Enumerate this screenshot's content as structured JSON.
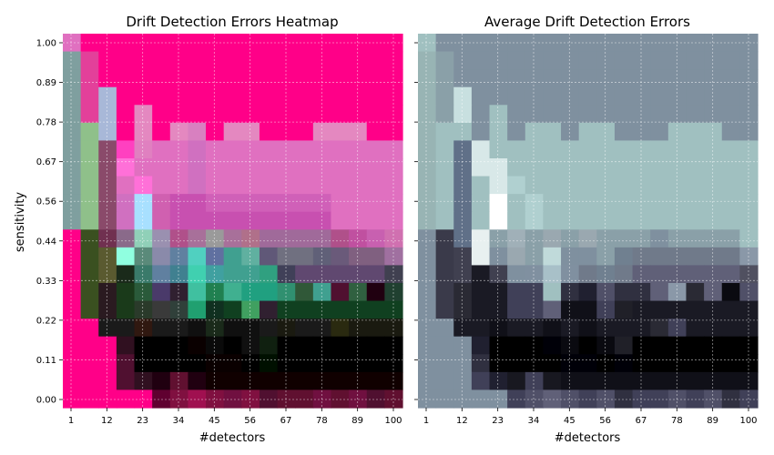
{
  "chart_data": [
    {
      "type": "heatmap",
      "title": "Drift Detection Errors Heatmap",
      "xlabel": "#detectors",
      "ylabel": "sensitivity",
      "xticks": [
        "1",
        "12",
        "23",
        "34",
        "45",
        "56",
        "67",
        "78",
        "89",
        "100"
      ],
      "yticks": [
        "1.00",
        "0.89",
        "0.78",
        "0.67",
        "0.56",
        "0.44",
        "0.33",
        "0.22",
        "0.11",
        "0.00"
      ],
      "grid": true,
      "rows_top_to_bottom": [
        [
          "#e070c0",
          "#ff0088",
          "#ff0088",
          "#ff0088",
          "#ff0088",
          "#ff0088",
          "#ff0088",
          "#ff0088",
          "#ff0088",
          "#ff0088",
          "#ff0088",
          "#ff0088",
          "#ff0088",
          "#ff0088",
          "#ff0088",
          "#ff0088",
          "#ff0088",
          "#ff0088",
          "#ff0088"
        ],
        [
          "#7f9f9f",
          "#e3409a",
          "#ff0088",
          "#ff0088",
          "#ff0088",
          "#ff0088",
          "#ff0088",
          "#ff0088",
          "#ff0088",
          "#ff0088",
          "#ff0088",
          "#ff0088",
          "#ff0088",
          "#ff0088",
          "#ff0088",
          "#ff0088",
          "#ff0088",
          "#ff0088",
          "#ff0088"
        ],
        [
          "#7f9f9f",
          "#e3409a",
          "#ff0088",
          "#ff0088",
          "#ff0088",
          "#ff0088",
          "#ff0088",
          "#ff0088",
          "#ff0088",
          "#ff0088",
          "#ff0088",
          "#ff0088",
          "#ff0088",
          "#ff0088",
          "#ff0088",
          "#ff0088",
          "#ff0088",
          "#ff0088",
          "#ff0088"
        ],
        [
          "#7f9f9f",
          "#e3409a",
          "#a8b8d8",
          "#ff0088",
          "#ff0088",
          "#ff0088",
          "#ff0088",
          "#ff0088",
          "#ff0088",
          "#ff0088",
          "#ff0088",
          "#ff0088",
          "#ff0088",
          "#ff0088",
          "#ff0088",
          "#ff0088",
          "#ff0088",
          "#ff0088",
          "#ff0088"
        ],
        [
          "#7f9f9f",
          "#e3409a",
          "#a8b8d8",
          "#ff0088",
          "#e488c0",
          "#ff0088",
          "#ff0088",
          "#ff0088",
          "#ff0088",
          "#ff0088",
          "#ff0088",
          "#ff0088",
          "#ff0088",
          "#ff0088",
          "#ff0088",
          "#ff0088",
          "#ff0088",
          "#ff0088",
          "#ff0088"
        ],
        [
          "#7f9f9f",
          "#8fc08a",
          "#a8b8d8",
          "#ff0088",
          "#e488c0",
          "#ff0088",
          "#e488c0",
          "#d880c0",
          "#ff0088",
          "#e488c0",
          "#e488c0",
          "#ff0088",
          "#ff0088",
          "#ff0088",
          "#e488c0",
          "#e488c0",
          "#e488c0",
          "#ff0088",
          "#ff0088"
        ],
        [
          "#7f9f9f",
          "#8fc08a",
          "#8a4a6a",
          "#ff40c0",
          "#e080c0",
          "#e070c0",
          "#e070c0",
          "#d070c0",
          "#e070c0",
          "#e070c0",
          "#e070c0",
          "#e070c0",
          "#e070c0",
          "#e070c0",
          "#e070c0",
          "#e070c0",
          "#e070c0",
          "#e070c0",
          "#e070c0"
        ],
        [
          "#7f9f9f",
          "#8fc08a",
          "#8a4a6a",
          "#ff70d8",
          "#e070c0",
          "#e070c0",
          "#e070c0",
          "#d070c0",
          "#e070c0",
          "#e070c0",
          "#e070c0",
          "#e070c0",
          "#e070c0",
          "#e070c0",
          "#e070c0",
          "#e070c0",
          "#e070c0",
          "#e070c0",
          "#e070c0"
        ],
        [
          "#7f9f9f",
          "#8fc08a",
          "#8a4a6a",
          "#e070c0",
          "#ff70d8",
          "#e070c0",
          "#e070c0",
          "#d070c0",
          "#e070c0",
          "#e070c0",
          "#e070c0",
          "#e070c0",
          "#e070c0",
          "#e070c0",
          "#e070c0",
          "#e070c0",
          "#e070c0",
          "#e070c0",
          "#e070c0"
        ],
        [
          "#7f9f9f",
          "#8fc08a",
          "#8a4a6a",
          "#d070c0",
          "#a8e0ff",
          "#d060b0",
          "#c850b0",
          "#c850b0",
          "#d060b8",
          "#d060b8",
          "#d060b8",
          "#d060b8",
          "#d060b8",
          "#d060b8",
          "#d060b8",
          "#e070c0",
          "#e070c0",
          "#e070c0",
          "#e070c0"
        ],
        [
          "#7f9f9f",
          "#8fc08a",
          "#8a4a6a",
          "#d070c0",
          "#a8e0ff",
          "#d060b0",
          "#c850b0",
          "#c850b0",
          "#c850b0",
          "#c850b0",
          "#c850b0",
          "#c850b0",
          "#c850b0",
          "#c850b0",
          "#c850b0",
          "#e070c0",
          "#e070c0",
          "#e070c0",
          "#e070c0"
        ],
        [
          "#ff0088",
          "#3a5020",
          "#703050",
          "#8a6a8a",
          "#90d0b8",
          "#9a90b0",
          "#b0508a",
          "#a8709a",
          "#9a9a9a",
          "#a8709a",
          "#b0708a",
          "#a06a9a",
          "#a06a9a",
          "#a06a9a",
          "#a06a9a",
          "#b0508a",
          "#c050a0",
          "#c860b0",
          "#d070b0"
        ],
        [
          "#ff0088",
          "#3a5020",
          "#5a5a30",
          "#90ffe0",
          "#5a8a7a",
          "#8a8aaa",
          "#6080a0",
          "#50d0c0",
          "#6070a0",
          "#40a090",
          "#60b0a0",
          "#605878",
          "#707080",
          "#707080",
          "#606078",
          "#6a5a7a",
          "#806080",
          "#806080",
          "#a070a0"
        ],
        [
          "#ff0088",
          "#3a5020",
          "#5a5a30",
          "#1a2a1a",
          "#3a7a6a",
          "#6080a0",
          "#408090",
          "#40d0b0",
          "#40a0a0",
          "#40a090",
          "#40a090",
          "#30a080",
          "#404058",
          "#604870",
          "#604870",
          "#604870",
          "#604870",
          "#604870",
          "#404050"
        ],
        [
          "#ff0088",
          "#3a5020",
          "#2a1a20",
          "#1a3a1a",
          "#2a5a3a",
          "#4a3a6a",
          "#302030",
          "#40c0a0",
          "#208050",
          "#40b090",
          "#20a080",
          "#20a080",
          "#309070",
          "#305838",
          "#40a090",
          "#501030",
          "#306040",
          "#200010",
          "#204030"
        ],
        [
          "#ff0088",
          "#3a5020",
          "#2a1a20",
          "#1a3a1a",
          "#2a3a2a",
          "#3a3a3a",
          "#30403a",
          "#20a070",
          "#103020",
          "#104020",
          "#40a060",
          "#302030",
          "#104020",
          "#104020",
          "#104020",
          "#104020",
          "#104020",
          "#104020",
          "#104020"
        ],
        [
          "#ff0088",
          "#ff0088",
          "#1a1a1a",
          "#1a1a1a",
          "#301810",
          "#1a1a1a",
          "#1a1a1a",
          "#101010",
          "#1a2a1a",
          "#101010",
          "#101010",
          "#1a1a1a",
          "#1a1a10",
          "#1a1a1a",
          "#1a1a1a",
          "#2a2a10",
          "#1a1a10",
          "#1a1a10",
          "#1a1a10"
        ],
        [
          "#ff0088",
          "#ff0088",
          "#ff0088",
          "#301020",
          "#000000",
          "#000000",
          "#000000",
          "#0a0000",
          "#0a0a0a",
          "#000000",
          "#101010",
          "#102010",
          "#000000",
          "#000000",
          "#000000",
          "#000000",
          "#000000",
          "#000000",
          "#000000"
        ],
        [
          "#ff0088",
          "#ff0088",
          "#ff0088",
          "#501030",
          "#000000",
          "#000000",
          "#000000",
          "#000000",
          "#0a0000",
          "#0a0000",
          "#000000",
          "#001000",
          "#000000",
          "#000000",
          "#000000",
          "#000000",
          "#000000",
          "#000000",
          "#000000"
        ],
        [
          "#ff0088",
          "#ff0088",
          "#ff0088",
          "#501030",
          "#301020",
          "#200010",
          "#601030",
          "#200010",
          "#100000",
          "#100000",
          "#100000",
          "#100000",
          "#100000",
          "#100000",
          "#100000",
          "#100000",
          "#100000",
          "#100000",
          "#100000"
        ],
        [
          "#ff0088",
          "#ff0088",
          "#ff0088",
          "#ff0088",
          "#ff0088",
          "#600030",
          "#801040",
          "#a01050",
          "#801040",
          "#701040",
          "#801040",
          "#501030",
          "#601030",
          "#601030",
          "#701040",
          "#601030",
          "#701040",
          "#501030",
          "#601030"
        ]
      ]
    },
    {
      "type": "heatmap",
      "title": "Average Drift Detection Errors",
      "xlabel": "#detectors",
      "ylabel": "",
      "xticks": [
        "1",
        "12",
        "23",
        "34",
        "45",
        "56",
        "67",
        "78",
        "89",
        "100"
      ],
      "yticks": [
        "",
        "",
        "",
        "",
        "",
        "",
        "",
        "",
        "",
        ""
      ],
      "grid": true,
      "rows_top_to_bottom": [
        [
          "#a0c0c0",
          "#7f909f",
          "#7f909f",
          "#7f909f",
          "#7f909f",
          "#7f909f",
          "#7f909f",
          "#7f909f",
          "#7f909f",
          "#7f909f",
          "#7f909f",
          "#7f909f",
          "#7f909f",
          "#7f909f",
          "#7f909f",
          "#7f909f",
          "#7f909f",
          "#7f909f",
          "#7f909f"
        ],
        [
          "#98b4b4",
          "#8aa0a8",
          "#7f909f",
          "#7f909f",
          "#7f909f",
          "#7f909f",
          "#7f909f",
          "#7f909f",
          "#7f909f",
          "#7f909f",
          "#7f909f",
          "#7f909f",
          "#7f909f",
          "#7f909f",
          "#7f909f",
          "#7f909f",
          "#7f909f",
          "#7f909f",
          "#7f909f"
        ],
        [
          "#98b4b4",
          "#8aa0a8",
          "#7f909f",
          "#7f909f",
          "#7f909f",
          "#7f909f",
          "#7f909f",
          "#7f909f",
          "#7f909f",
          "#7f909f",
          "#7f909f",
          "#7f909f",
          "#7f909f",
          "#7f909f",
          "#7f909f",
          "#7f909f",
          "#7f909f",
          "#7f909f",
          "#7f909f"
        ],
        [
          "#98b4b4",
          "#8aa0a8",
          "#c8e0e0",
          "#7f909f",
          "#7f909f",
          "#7f909f",
          "#7f909f",
          "#7f909f",
          "#7f909f",
          "#7f909f",
          "#7f909f",
          "#7f909f",
          "#7f909f",
          "#7f909f",
          "#7f909f",
          "#7f909f",
          "#7f909f",
          "#7f909f",
          "#7f909f"
        ],
        [
          "#98b4b4",
          "#8aa0a8",
          "#c8e0e0",
          "#7f909f",
          "#a0c0c0",
          "#7f909f",
          "#7f909f",
          "#7f909f",
          "#7f909f",
          "#7f909f",
          "#7f909f",
          "#7f909f",
          "#7f909f",
          "#7f909f",
          "#7f909f",
          "#7f909f",
          "#7f909f",
          "#7f909f",
          "#7f909f"
        ],
        [
          "#98b4b4",
          "#a0c0c0",
          "#a0c0c0",
          "#7f909f",
          "#a0c0c0",
          "#7f909f",
          "#a0c0c0",
          "#a0c0c0",
          "#7f909f",
          "#a0c0c0",
          "#a0c0c0",
          "#7f909f",
          "#7f909f",
          "#7f909f",
          "#a0c0c0",
          "#a0c0c0",
          "#a0c0c0",
          "#7f909f",
          "#7f909f"
        ],
        [
          "#98b4b4",
          "#a0c0c0",
          "#607088",
          "#d8e8e8",
          "#a0c0c0",
          "#a0c0c0",
          "#a0c0c0",
          "#a0c0c0",
          "#a0c0c0",
          "#a0c0c0",
          "#a0c0c0",
          "#a0c0c0",
          "#a0c0c0",
          "#a0c0c0",
          "#a0c0c0",
          "#a0c0c0",
          "#a0c0c0",
          "#a0c0c0",
          "#a0c0c0"
        ],
        [
          "#98b4b4",
          "#a0c0c0",
          "#607088",
          "#d8e8e8",
          "#d8e8e8",
          "#a0c0c0",
          "#a0c0c0",
          "#a0c0c0",
          "#a0c0c0",
          "#a0c0c0",
          "#a0c0c0",
          "#a0c0c0",
          "#a0c0c0",
          "#a0c0c0",
          "#a0c0c0",
          "#a0c0c0",
          "#a0c0c0",
          "#a0c0c0",
          "#a0c0c0"
        ],
        [
          "#98b4b4",
          "#a0c0c0",
          "#607088",
          "#a0c0c0",
          "#d8e8e8",
          "#b0d0d0",
          "#a0c0c0",
          "#a0c0c0",
          "#a0c0c0",
          "#a0c0c0",
          "#a0c0c0",
          "#a0c0c0",
          "#a0c0c0",
          "#a0c0c0",
          "#a0c0c0",
          "#a0c0c0",
          "#a0c0c0",
          "#a0c0c0",
          "#a0c0c0"
        ],
        [
          "#98b4b4",
          "#a0c0c0",
          "#607088",
          "#a0c0c0",
          "#ffffff",
          "#a0c0c0",
          "#b0d0d0",
          "#a0c0c0",
          "#a0c0c0",
          "#a0c0c0",
          "#a0c0c0",
          "#a0c0c0",
          "#a0c0c0",
          "#a0c0c0",
          "#a0c0c0",
          "#a0c0c0",
          "#a0c0c0",
          "#a0c0c0",
          "#a0c0c0"
        ],
        [
          "#98b4b4",
          "#a0c0c0",
          "#607088",
          "#a0c0c0",
          "#ffffff",
          "#a0c0c0",
          "#b0d0d0",
          "#a0c0c0",
          "#a0c0c0",
          "#a0c0c0",
          "#a0c0c0",
          "#a0c0c0",
          "#a0c0c0",
          "#a0c0c0",
          "#a0c0c0",
          "#a0c0c0",
          "#a0c0c0",
          "#a0c0c0",
          "#a0c0c0"
        ],
        [
          "#7f909f",
          "#3a3a4a",
          "#607088",
          "#e8f0f0",
          "#8aa0a8",
          "#a0b0b8",
          "#8aa0a8",
          "#9aa8b0",
          "#8aa0a8",
          "#9aa8b0",
          "#8aa0a8",
          "#8aa0a8",
          "#8aa0a8",
          "#7f909f",
          "#8aa0a8",
          "#8aa0a8",
          "#8aa0a8",
          "#8aa0a8",
          "#a0c0c0"
        ],
        [
          "#7f909f",
          "#3a3a4a",
          "#404050",
          "#e8f0f0",
          "#7f909f",
          "#9aa8b0",
          "#8aa0a8",
          "#c0dada",
          "#7f909f",
          "#7f909f",
          "#8aa0a8",
          "#708090",
          "#707a8a",
          "#707a8a",
          "#707a8a",
          "#707a8a",
          "#707a8a",
          "#707a8a",
          "#8a98a8"
        ],
        [
          "#7f909f",
          "#3a3a4a",
          "#404050",
          "#1a1a24",
          "#404050",
          "#7f909f",
          "#8090a0",
          "#a8c0c8",
          "#8090a0",
          "#707a8a",
          "#708090",
          "#707a8a",
          "#606078",
          "#606078",
          "#606078",
          "#606078",
          "#606078",
          "#606078",
          "#505060"
        ],
        [
          "#7f909f",
          "#3a3a4a",
          "#2a2a34",
          "#1a1a24",
          "#1a1a24",
          "#404058",
          "#404058",
          "#a0c0c0",
          "#303040",
          "#202030",
          "#505068",
          "#303040",
          "#303040",
          "#606078",
          "#8a98a8",
          "#2a2a34",
          "#606078",
          "#0a0a10",
          "#505068"
        ],
        [
          "#7f909f",
          "#3a3a4a",
          "#2a2a34",
          "#1a1a24",
          "#1a1a24",
          "#404058",
          "#404058",
          "#606078",
          "#101018",
          "#101018",
          "#404058",
          "#202028",
          "#1a1a24",
          "#1a1a24",
          "#1a1a24",
          "#1a1a24",
          "#1a1a24",
          "#1a1a24",
          "#1a1a24"
        ],
        [
          "#7f909f",
          "#7f909f",
          "#1a1a24",
          "#1a1a24",
          "#101018",
          "#1a1a24",
          "#1a1a24",
          "#101018",
          "#1a1a24",
          "#101018",
          "#1a1a24",
          "#1a1a24",
          "#1a1a24",
          "#2a2a34",
          "#404058",
          "#1a1a24",
          "#1a1a24",
          "#1a1a24",
          "#1a1a24"
        ],
        [
          "#7f909f",
          "#7f909f",
          "#7f909f",
          "#202030",
          "#000000",
          "#000000",
          "#000000",
          "#000008",
          "#0a0a10",
          "#000000",
          "#0a0a10",
          "#202028",
          "#000000",
          "#000000",
          "#000000",
          "#000000",
          "#000000",
          "#000000",
          "#000000"
        ],
        [
          "#7f909f",
          "#7f909f",
          "#7f909f",
          "#303040",
          "#000000",
          "#000000",
          "#000000",
          "#000000",
          "#000008",
          "#000008",
          "#000000",
          "#000008",
          "#000000",
          "#000000",
          "#000000",
          "#000000",
          "#000000",
          "#000000",
          "#000000"
        ],
        [
          "#7f909f",
          "#7f909f",
          "#7f909f",
          "#404058",
          "#202030",
          "#181820",
          "#404058",
          "#181820",
          "#101018",
          "#101018",
          "#101018",
          "#101018",
          "#101018",
          "#101018",
          "#101018",
          "#101018",
          "#101018",
          "#101018",
          "#101018"
        ],
        [
          "#7f909f",
          "#7f909f",
          "#7f909f",
          "#7f909f",
          "#7f909f",
          "#404058",
          "#505068",
          "#606078",
          "#505068",
          "#404058",
          "#505068",
          "#303040",
          "#404058",
          "#404058",
          "#505068",
          "#404058",
          "#505068",
          "#303040",
          "#404058"
        ]
      ]
    }
  ]
}
